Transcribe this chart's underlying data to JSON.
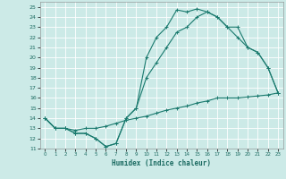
{
  "title": "",
  "xlabel": "Humidex (Indice chaleur)",
  "bg_color": "#cceae7",
  "grid_color": "#ffffff",
  "line_color": "#1a7a6e",
  "xlim": [
    -0.5,
    23.5
  ],
  "ylim": [
    11,
    25.5
  ],
  "yticks": [
    11,
    12,
    13,
    14,
    15,
    16,
    17,
    18,
    19,
    20,
    21,
    22,
    23,
    24,
    25
  ],
  "xticks": [
    0,
    1,
    2,
    3,
    4,
    5,
    6,
    7,
    8,
    9,
    10,
    11,
    12,
    13,
    14,
    15,
    16,
    17,
    18,
    19,
    20,
    21,
    22,
    23
  ],
  "line1_x": [
    0,
    1,
    2,
    3,
    4,
    5,
    6,
    7,
    8,
    9,
    10,
    11,
    12,
    13,
    14,
    15,
    16,
    17,
    18,
    19,
    20,
    21,
    22,
    23
  ],
  "line1_y": [
    14,
    13,
    13,
    12.5,
    12.5,
    12,
    11.2,
    11.5,
    14,
    15,
    20,
    22,
    23,
    24.7,
    24.5,
    24.8,
    24.5,
    24,
    23,
    23,
    21,
    20.5,
    19,
    16.5
  ],
  "line2_x": [
    0,
    1,
    2,
    3,
    4,
    5,
    6,
    7,
    8,
    9,
    10,
    11,
    12,
    13,
    14,
    15,
    16,
    17,
    18,
    19,
    20,
    21,
    22,
    23
  ],
  "line2_y": [
    14,
    13,
    13,
    12.5,
    12.5,
    12,
    11.2,
    11.5,
    14,
    15,
    18,
    19.5,
    21,
    22.5,
    23,
    24,
    24.5,
    24,
    23,
    22,
    21,
    20.5,
    19,
    16.5
  ],
  "line3_x": [
    0,
    1,
    2,
    3,
    4,
    5,
    6,
    7,
    8,
    9,
    10,
    11,
    12,
    13,
    14,
    15,
    16,
    17,
    18,
    19,
    20,
    21,
    22,
    23
  ],
  "line3_y": [
    14,
    13,
    13,
    12.8,
    13,
    13,
    13.2,
    13.5,
    13.8,
    14,
    14.2,
    14.5,
    14.8,
    15,
    15.2,
    15.5,
    15.7,
    16,
    16,
    16,
    16.1,
    16.2,
    16.3,
    16.5
  ]
}
